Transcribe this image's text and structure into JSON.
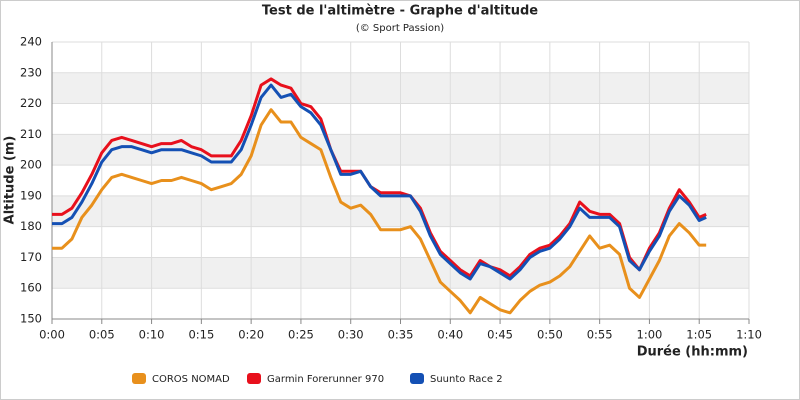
{
  "chart_data": {
    "type": "line",
    "title": "Test de l'altimètre - Graphe d'altitude",
    "subtitle": "(© Sport Passion)",
    "x_label": "Durée (hh:mm)",
    "y_label": "Altitude (m)",
    "x": [
      0,
      1,
      2,
      3,
      4,
      5,
      6,
      7,
      8,
      9,
      10,
      11,
      12,
      13,
      14,
      15,
      16,
      17,
      18,
      19,
      20,
      21,
      22,
      23,
      24,
      25,
      26,
      27,
      28,
      29,
      30,
      31,
      32,
      33,
      34,
      35,
      36,
      37,
      38,
      39,
      40,
      41,
      42,
      43,
      44,
      45,
      46,
      47,
      48,
      49,
      50,
      51,
      52,
      53,
      54,
      55,
      56,
      57,
      58,
      59,
      60,
      61,
      62,
      63,
      64,
      65,
      65.7
    ],
    "series": [
      {
        "name": "COROS NOMAD",
        "color": "#e8901c",
        "values": [
          173,
          173,
          176,
          183,
          187,
          192,
          196,
          197,
          196,
          195,
          194,
          195,
          195,
          196,
          195,
          194,
          192,
          193,
          194,
          197,
          203,
          213,
          218,
          214,
          214,
          209,
          207,
          205,
          196,
          188,
          186,
          187,
          184,
          179,
          179,
          179,
          180,
          176,
          169,
          162,
          159,
          156,
          152,
          157,
          155,
          153,
          152,
          156,
          159,
          161,
          162,
          164,
          167,
          172,
          177,
          173,
          174,
          171,
          160,
          157,
          163,
          169,
          177,
          181,
          178,
          174,
          174
        ]
      },
      {
        "name": "Garmin Forerunner 970",
        "color": "#e8101c",
        "values": [
          184,
          184,
          186,
          191,
          197,
          204,
          208,
          209,
          208,
          207,
          206,
          207,
          207,
          208,
          206,
          205,
          203,
          203,
          203,
          208,
          216,
          226,
          228,
          226,
          225,
          220,
          219,
          215,
          205,
          198,
          198,
          198,
          193,
          191,
          191,
          191,
          190,
          186,
          178,
          172,
          169,
          166,
          164,
          169,
          167,
          166,
          164,
          167,
          171,
          173,
          174,
          177,
          181,
          188,
          185,
          184,
          184,
          181,
          170,
          166,
          173,
          178,
          186,
          192,
          188,
          183,
          184
        ]
      },
      {
        "name": "Suunto Race 2",
        "color": "#1450b4",
        "values": [
          181,
          181,
          183,
          188,
          194,
          201,
          205,
          206,
          206,
          205,
          204,
          205,
          205,
          205,
          204,
          203,
          201,
          201,
          201,
          205,
          213,
          222,
          226,
          222,
          223,
          219,
          217,
          213,
          205,
          197,
          197,
          198,
          193,
          190,
          190,
          190,
          190,
          185,
          177,
          171,
          168,
          165,
          163,
          168,
          167,
          165,
          163,
          166,
          170,
          172,
          173,
          176,
          180,
          186,
          183,
          183,
          183,
          180,
          169,
          166,
          172,
          177,
          185,
          190,
          187,
          182,
          183
        ]
      }
    ],
    "xlim": [
      0,
      70
    ],
    "xticks": [
      {
        "value": 0,
        "label": "0:00"
      },
      {
        "value": 5,
        "label": "0:05"
      },
      {
        "value": 10,
        "label": "0:10"
      },
      {
        "value": 15,
        "label": "0:15"
      },
      {
        "value": 20,
        "label": "0:20"
      },
      {
        "value": 25,
        "label": "0:25"
      },
      {
        "value": 30,
        "label": "0:30"
      },
      {
        "value": 35,
        "label": "0:35"
      },
      {
        "value": 40,
        "label": "0:40"
      },
      {
        "value": 45,
        "label": "0:45"
      },
      {
        "value": 50,
        "label": "0:50"
      },
      {
        "value": 55,
        "label": "0:55"
      },
      {
        "value": 60,
        "label": "1:00"
      },
      {
        "value": 65,
        "label": "1:05"
      },
      {
        "value": 70,
        "label": "1:10"
      }
    ],
    "ylim": [
      150,
      240
    ],
    "yticks": [
      150,
      160,
      170,
      180,
      190,
      200,
      210,
      220,
      230,
      240
    ],
    "grid": true,
    "legend": "bottom"
  }
}
